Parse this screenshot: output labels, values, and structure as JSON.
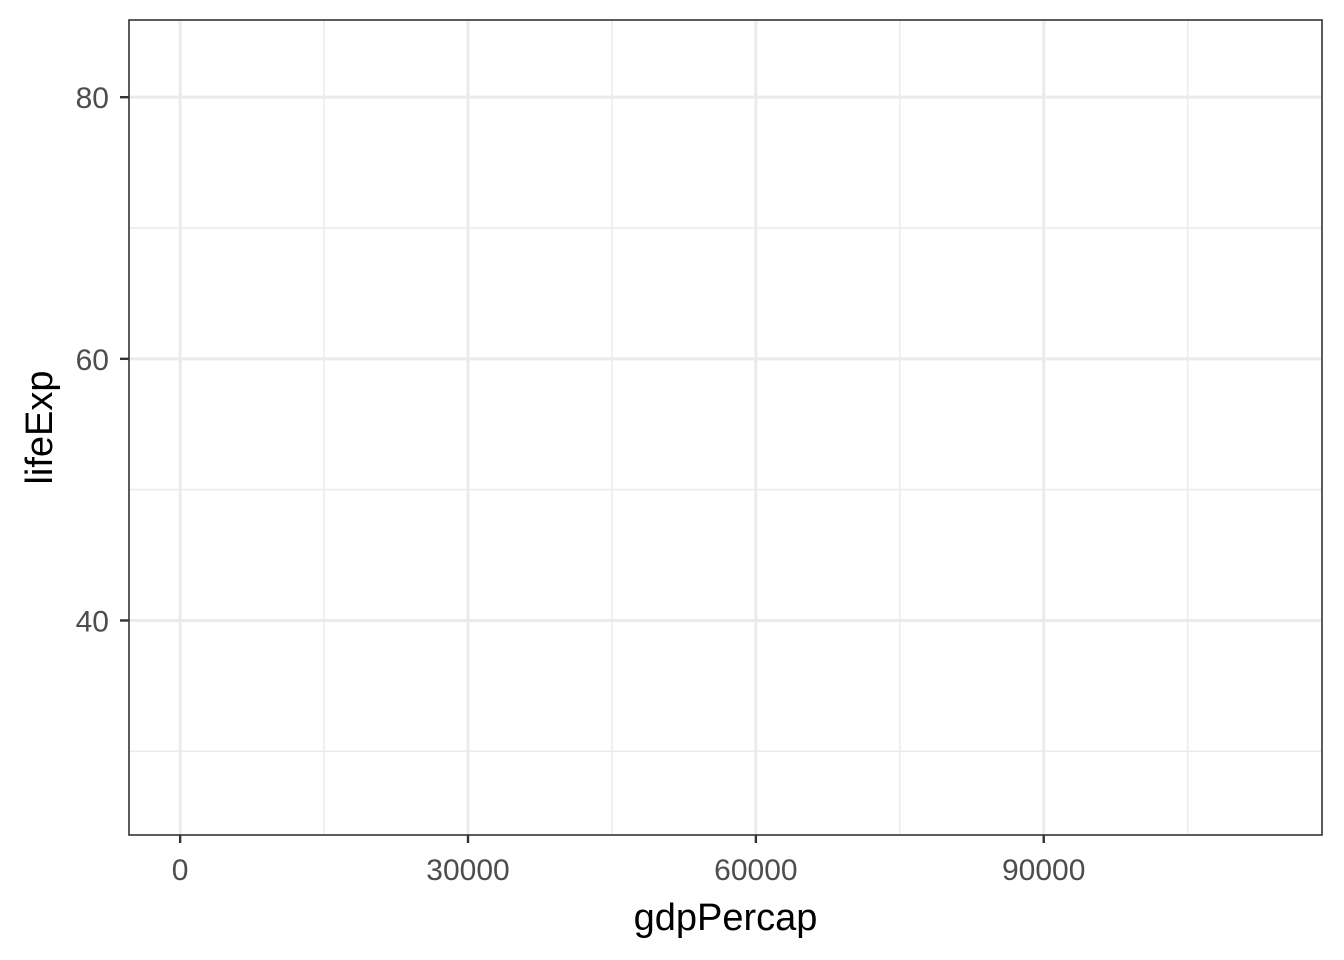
{
  "chart_data": {
    "type": "scatter",
    "title": "",
    "xlabel": "gdpPercap",
    "ylabel": "lifeExp",
    "xlim": [
      -5330,
      119000
    ],
    "ylim": [
      23.6,
      85.9
    ],
    "x_ticks": [
      0,
      30000,
      60000,
      90000
    ],
    "x_tick_labels": [
      "0",
      "30000",
      "60000",
      "90000"
    ],
    "x_minor_ticks": [
      15000,
      45000,
      75000,
      105000
    ],
    "y_ticks": [
      40,
      60,
      80
    ],
    "y_tick_labels": [
      "40",
      "60",
      "80"
    ],
    "y_minor_ticks": [
      30,
      50,
      70
    ],
    "grid": true,
    "legend": "none",
    "series": [],
    "colors": {
      "background": "#ffffff",
      "grid": "#ebebeb",
      "border": "#333333",
      "tick_label": "#4d4d4d",
      "axis_title": "#000000"
    }
  }
}
